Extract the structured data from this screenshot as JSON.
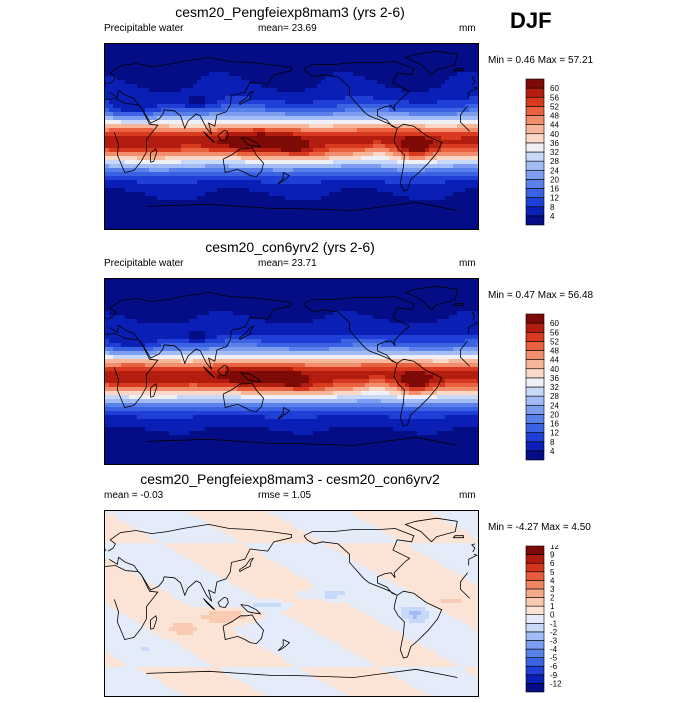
{
  "season": "DJF",
  "panels": [
    {
      "title": "cesm20_Pengfeiexp8mam3 (yrs 2-6)",
      "left_label": "Precipitable water",
      "center_label": "mean=  23.69",
      "units": "mm",
      "minmax": "Min =   0.46 Max =  57.21",
      "kind": "full"
    },
    {
      "title": "cesm20_con6yrv2 (yrs 2-6)",
      "left_label": "Precipitable water",
      "center_label": "mean=  23.71",
      "units": "mm",
      "minmax": "Min =  0.47 Max =  56.48",
      "kind": "full"
    },
    {
      "title": "cesm20_Pengfeiexp8mam3 - cesm20_con6yrv2",
      "left_label": "mean =  -0.03",
      "center_label": "rmse =   1.05",
      "units": "mm",
      "minmax": "Min =  -4.27 Max =   4.50",
      "kind": "diff"
    }
  ],
  "chart_data": [
    {
      "type": "heatmap",
      "title": "cesm20_Pengfeiexp8mam3 (yrs 2-6)",
      "variable": "Precipitable water",
      "units": "mm",
      "mean": 23.69,
      "min": 0.46,
      "max": 57.21,
      "colorbar_levels": [
        4,
        8,
        12,
        16,
        20,
        24,
        28,
        32,
        36,
        40,
        44,
        48,
        52,
        56,
        60
      ],
      "colorbar_colors": [
        "#050d86",
        "#0a1fb5",
        "#1f3fd6",
        "#3a62e2",
        "#5a80ea",
        "#7d9df0",
        "#a3bcf5",
        "#c8d8f8",
        "#eef0f5",
        "#fbd9c8",
        "#f7b69a",
        "#f28e6d",
        "#e9623f",
        "#d83a1f",
        "#b31d10",
        "#7d0a05"
      ]
    },
    {
      "type": "heatmap",
      "title": "cesm20_con6yrv2 (yrs 2-6)",
      "variable": "Precipitable water",
      "units": "mm",
      "mean": 23.71,
      "min": 0.47,
      "max": 56.48,
      "colorbar_levels": [
        4,
        8,
        12,
        16,
        20,
        24,
        28,
        32,
        36,
        40,
        44,
        48,
        52,
        56,
        60
      ],
      "colorbar_colors": [
        "#050d86",
        "#0a1fb5",
        "#1f3fd6",
        "#3a62e2",
        "#5a80ea",
        "#7d9df0",
        "#a3bcf5",
        "#c8d8f8",
        "#eef0f5",
        "#fbd9c8",
        "#f7b69a",
        "#f28e6d",
        "#e9623f",
        "#d83a1f",
        "#b31d10",
        "#7d0a05"
      ]
    },
    {
      "type": "heatmap",
      "title": "cesm20_Pengfeiexp8mam3 - cesm20_con6yrv2",
      "units": "mm",
      "mean": -0.03,
      "rmse": 1.05,
      "min": -4.27,
      "max": 4.5,
      "colorbar_levels": [
        -12,
        -9,
        -6,
        -5,
        -4,
        -3,
        -2,
        -1,
        0,
        1,
        2,
        3,
        4,
        5,
        6,
        9,
        12
      ],
      "colorbar_colors": [
        "#050d86",
        "#0a1fb5",
        "#1f3fd6",
        "#3a62e2",
        "#5a80ea",
        "#7d9df0",
        "#a3bcf5",
        "#c8d8f8",
        "#e4ecfa",
        "#fbe4d6",
        "#f9cbb2",
        "#f5ab8a",
        "#ef8663",
        "#e55d3a",
        "#d3361c",
        "#b01b0f",
        "#7d0a05"
      ]
    }
  ]
}
